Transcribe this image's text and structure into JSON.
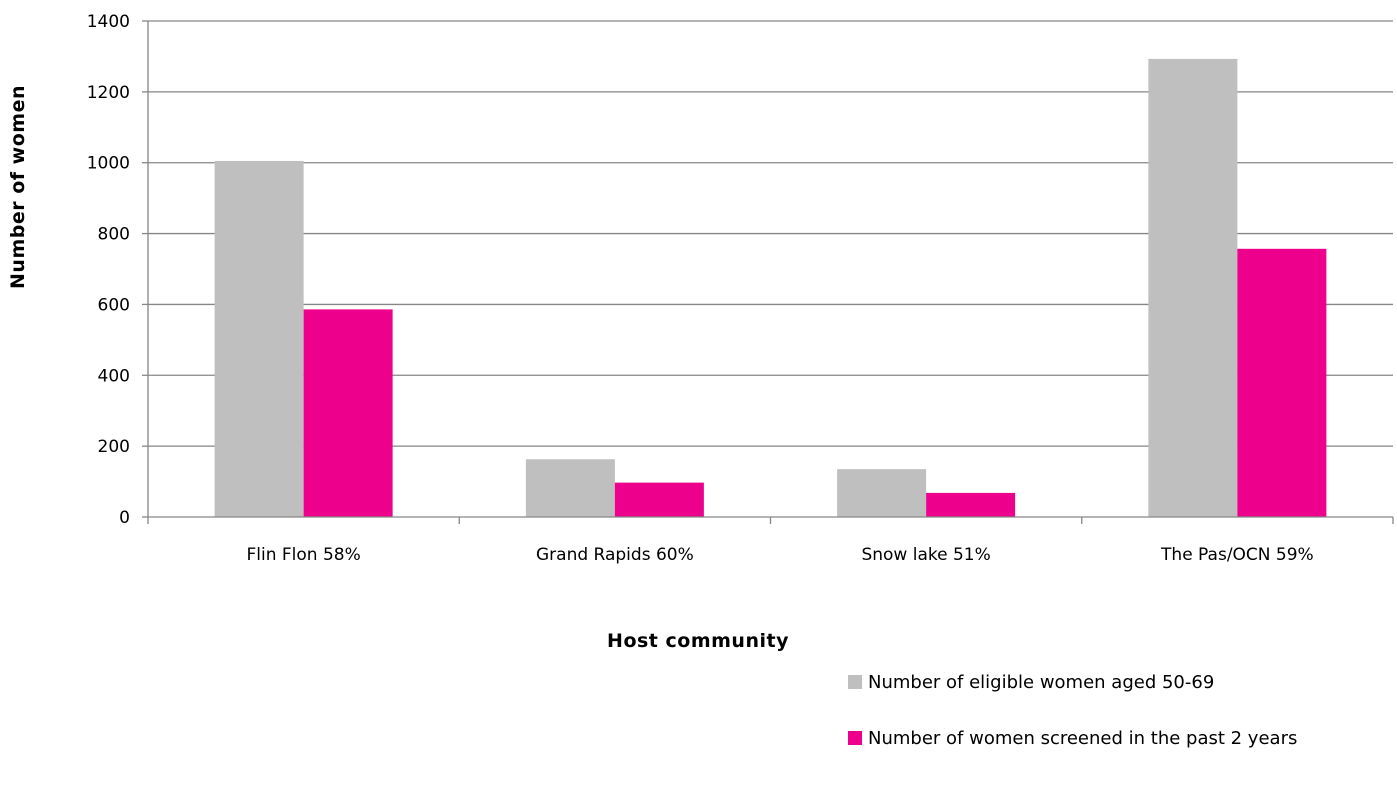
{
  "chart_data": {
    "type": "bar",
    "categories": [
      "Flin Flon 58%",
      "Grand Rapids 60%",
      "Snow lake 51%",
      "The Pas/OCN 59%"
    ],
    "series": [
      {
        "name": "Number of eligible women aged 50-69",
        "color": "#bfbfbf",
        "values": [
          1005,
          163,
          135,
          1293
        ]
      },
      {
        "name": "Number of women screened in the past 2 years",
        "color": "#ec008c",
        "values": [
          586,
          97,
          68,
          757
        ]
      }
    ],
    "xlabel": "Host community",
    "ylabel": "Number of women",
    "ylim": [
      0,
      1400
    ],
    "yticks": [
      "0",
      "200",
      "400",
      "600",
      "800",
      "1000",
      "1200",
      "1400"
    ],
    "grid": true,
    "legend_position": "bottom-right"
  }
}
